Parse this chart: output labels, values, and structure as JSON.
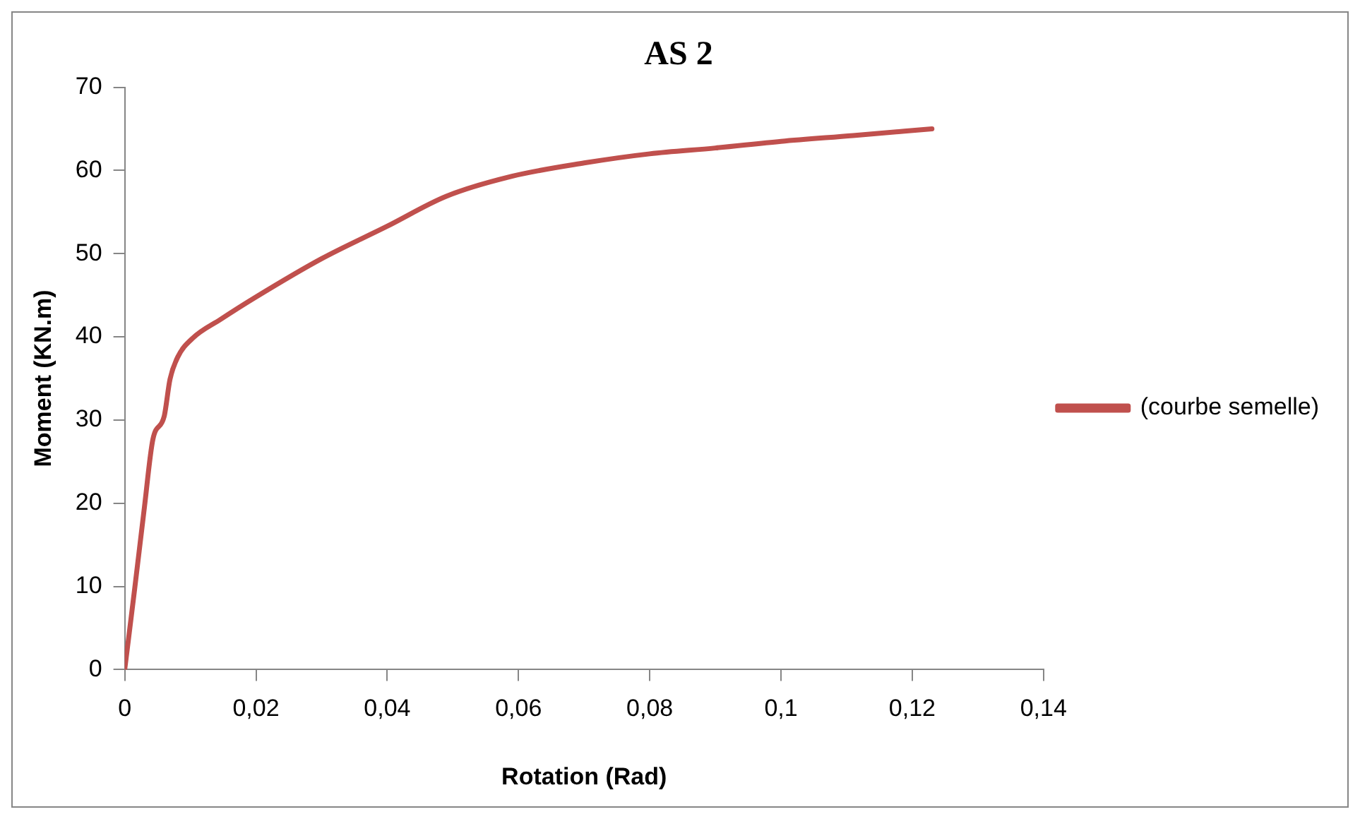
{
  "chart_data": {
    "type": "line",
    "title": "AS 2",
    "xlabel": "Rotation (Rad)",
    "ylabel": "Moment (KN.m)",
    "series": [
      {
        "name": "(courbe semelle)",
        "color": "#c0504d",
        "x": [
          0,
          0.0015,
          0.003,
          0.0043,
          0.006,
          0.0069,
          0.0081,
          0.0103,
          0.0146,
          0.0198,
          0.03,
          0.04,
          0.049,
          0.059,
          0.07,
          0.08,
          0.09,
          0.1,
          0.111,
          0.123
        ],
        "values": [
          0,
          9.6,
          19.5,
          27.7,
          30.4,
          34.9,
          37.6,
          39.8,
          42.1,
          44.7,
          49.4,
          53.3,
          56.9,
          59.3,
          60.9,
          62.0,
          62.7,
          63.5,
          64.2,
          65.0
        ]
      }
    ],
    "xlim": [
      0,
      0.14
    ],
    "xticks": [
      0,
      {
        "value": 0.02,
        "label": "0,02"
      },
      {
        "value": 0.04,
        "label": "0,04"
      },
      {
        "value": 0.06,
        "label": "0,06"
      },
      {
        "value": 0.08,
        "label": "0,08"
      },
      {
        "value": 0.1,
        "label": "0,1"
      },
      {
        "value": 0.12,
        "label": "0,12"
      },
      {
        "value": 0.14,
        "label": "0,14"
      }
    ],
    "ylim": [
      0,
      70
    ],
    "yticks": [
      0,
      10,
      20,
      30,
      40,
      50,
      60,
      70
    ],
    "grid": false,
    "legend": "right",
    "marker": "none",
    "line_style": "solid"
  }
}
